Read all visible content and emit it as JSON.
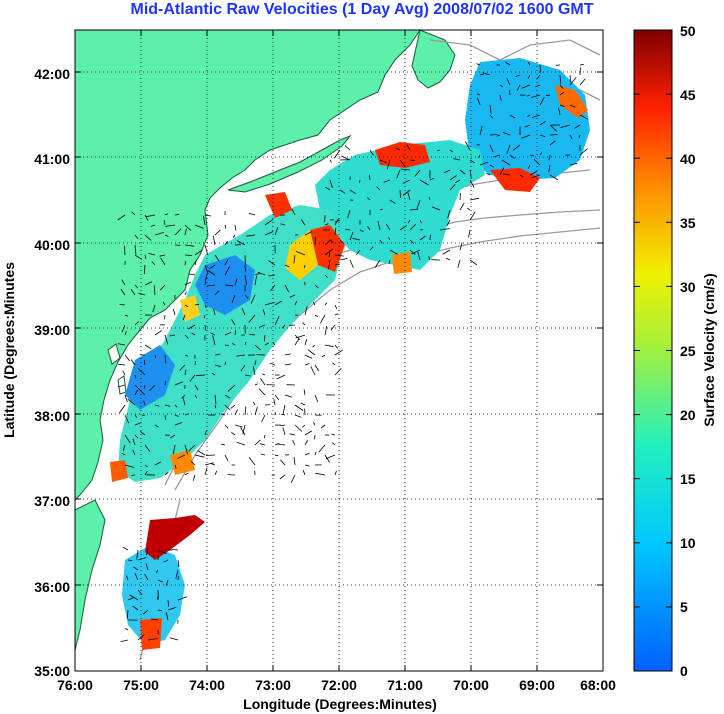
{
  "title": "Mid-Atlantic Raw Velocities (1 Day Avg) 2008/07/02 1600 GMT",
  "map": {
    "xlabel": "Longitude (Degrees:Minutes)",
    "ylabel": "Latitude (Degrees:Minutes",
    "x_ticks": [
      "76:00",
      "75:00",
      "74:00",
      "73:00",
      "72:00",
      "71:00",
      "70:00",
      "69:00",
      "68:00"
    ],
    "y_ticks": [
      "42:00",
      "41:00",
      "40:00",
      "39:00",
      "38:00",
      "37:00",
      "36:00",
      "35:00"
    ],
    "lon_range": [
      -76,
      -68
    ],
    "lat_range": [
      35,
      42.5
    ],
    "grid": "dotted",
    "land_color": "#5cf0aa",
    "bathymetry_color": "#9a9a9a"
  },
  "colorbar": {
    "label": "Surface Velocity (cm/s)",
    "ticks": [
      "50",
      "45",
      "40",
      "35",
      "30",
      "25",
      "20",
      "15",
      "10",
      "5",
      "0"
    ],
    "range": [
      0,
      50
    ],
    "colormap": "jet"
  }
}
